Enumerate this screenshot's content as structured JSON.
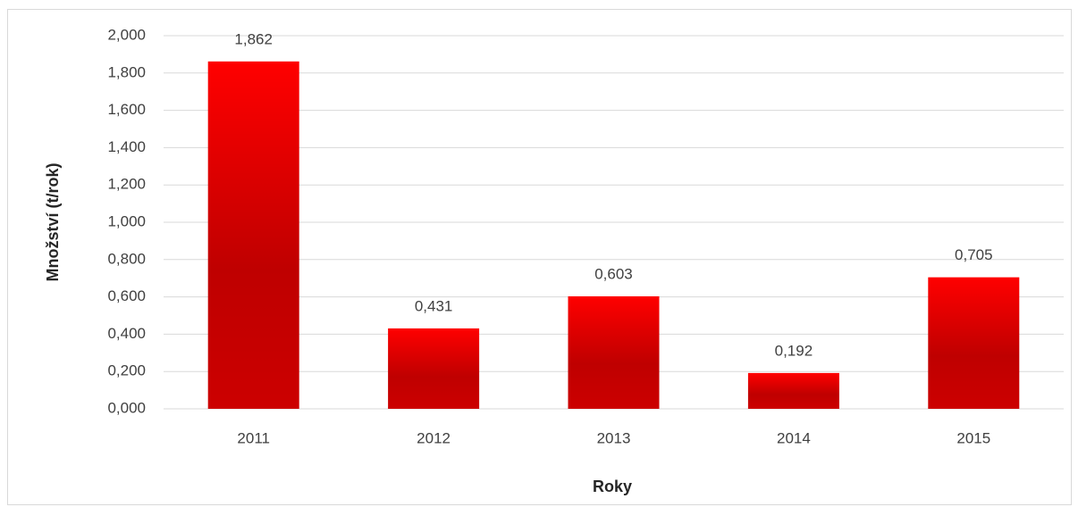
{
  "chart_data": {
    "type": "bar",
    "x_label": "Roky",
    "y_label": "Množství (t/rok)",
    "categories": [
      "2011",
      "2012",
      "2013",
      "2014",
      "2015"
    ],
    "values": [
      1.862,
      0.431,
      0.603,
      0.192,
      0.705
    ],
    "value_labels": [
      "1,862",
      "0,431",
      "0,603",
      "0,192",
      "0,705"
    ],
    "color": "#ff0000",
    "ylim": [
      0,
      2
    ],
    "yticks": [
      {
        "value": 0,
        "label": "0,000"
      },
      {
        "value": 0.2,
        "label": "0,200"
      },
      {
        "value": 0.4,
        "label": "0,400"
      },
      {
        "value": 0.6,
        "label": "0,600"
      },
      {
        "value": 0.8,
        "label": "0,800"
      },
      {
        "value": 1,
        "label": "1,000"
      },
      {
        "value": 1.2,
        "label": "1,200"
      },
      {
        "value": 1.4,
        "label": "1,400"
      },
      {
        "value": 1.6,
        "label": "1,600"
      },
      {
        "value": 1.8,
        "label": "1,800"
      },
      {
        "value": 2,
        "label": "2,000"
      }
    ],
    "grid": true
  }
}
